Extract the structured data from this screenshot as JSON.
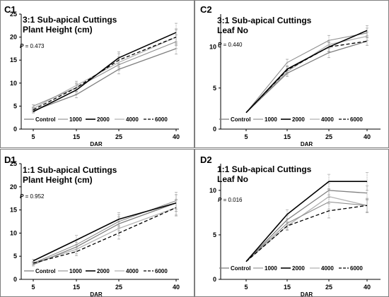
{
  "chart_data": [
    {
      "id": "C1",
      "type": "line",
      "title_lines": [
        "3:1 Sub-apical Cuttings",
        "Plant Height (cm)"
      ],
      "p_label": "P",
      "p_value": "= 0.473",
      "xlabel": "DAR",
      "categories": [
        "5",
        "15",
        "25",
        "40"
      ],
      "ylim": [
        0,
        25
      ],
      "yticks": [
        0,
        5,
        10,
        15,
        20,
        25
      ],
      "series": [
        {
          "name": "Control",
          "values": [
            4.0,
            7.5,
            13.0,
            17.5
          ],
          "err": [
            0.3,
            0.7,
            1.0,
            1.2
          ]
        },
        {
          "name": "1000",
          "values": [
            5.0,
            9.0,
            14.0,
            19.0
          ],
          "err": [
            0.3,
            0.8,
            1.2,
            1.5
          ]
        },
        {
          "name": "2000",
          "values": [
            3.8,
            8.5,
            15.5,
            21.0
          ],
          "err": [
            0.3,
            0.9,
            1.3,
            2.0
          ]
        },
        {
          "name": "4000",
          "values": [
            4.5,
            9.5,
            14.5,
            20.0
          ],
          "err": [
            0.3,
            0.9,
            1.2,
            1.8
          ]
        },
        {
          "name": "6000",
          "values": [
            4.2,
            9.0,
            15.0,
            20.0
          ],
          "err": [
            0.3,
            1.0,
            1.4,
            1.6
          ]
        }
      ]
    },
    {
      "id": "C2",
      "type": "line",
      "title_lines": [
        "3:1 Sub-apical Cuttings",
        "Leaf No"
      ],
      "p_label": "P",
      "p_value": "= 0.440",
      "xlabel": "DAR",
      "categories": [
        "5",
        "15",
        "25",
        "40"
      ],
      "ylim": [
        0,
        14
      ],
      "yticks": [
        0,
        5,
        10
      ],
      "series": [
        {
          "name": "Control",
          "values": [
            2,
            6.8,
            9.3,
            10.7
          ],
          "err": [
            0,
            0.4,
            0.6,
            0.5
          ]
        },
        {
          "name": "1000",
          "values": [
            2,
            8.1,
            10.8,
            11.7
          ],
          "err": [
            0,
            0.4,
            0.6,
            0.6
          ]
        },
        {
          "name": "2000",
          "values": [
            2,
            7.3,
            10.0,
            12.0
          ],
          "err": [
            0,
            0.4,
            0.6,
            0.6
          ]
        },
        {
          "name": "4000",
          "values": [
            2,
            7.0,
            10.3,
            11.3
          ],
          "err": [
            0,
            0.4,
            0.5,
            0.5
          ]
        },
        {
          "name": "6000",
          "values": [
            2,
            7.2,
            10.0,
            10.7
          ],
          "err": [
            0,
            0.4,
            0.5,
            0.5
          ]
        }
      ]
    },
    {
      "id": "D1",
      "type": "line",
      "title_lines": [
        "1:1 Sub-apical Cuttings",
        "Plant Height (cm)"
      ],
      "p_label": "P",
      "p_value": "= 0.952",
      "xlabel": "DAR",
      "categories": [
        "5",
        "15",
        "25",
        "40"
      ],
      "ylim": [
        0,
        25
      ],
      "yticks": [
        0,
        5,
        10,
        15,
        20,
        25
      ],
      "series": [
        {
          "name": "Control",
          "values": [
            3.2,
            7.0,
            12.0,
            16.5
          ],
          "err": [
            0.3,
            1.0,
            1.5,
            1.8
          ]
        },
        {
          "name": "1000",
          "values": [
            3.5,
            7.5,
            12.5,
            17.0
          ],
          "err": [
            0.3,
            1.0,
            1.5,
            1.8
          ]
        },
        {
          "name": "2000",
          "values": [
            4.0,
            8.5,
            13.0,
            16.5
          ],
          "err": [
            0.3,
            1.0,
            1.4,
            1.8
          ]
        },
        {
          "name": "4000",
          "values": [
            3.5,
            6.5,
            11.0,
            15.5
          ],
          "err": [
            0.3,
            1.0,
            1.5,
            1.8
          ]
        },
        {
          "name": "6000",
          "values": [
            3.5,
            6.0,
            10.0,
            15.5
          ],
          "err": [
            0.3,
            0.9,
            1.3,
            1.6
          ]
        }
      ]
    },
    {
      "id": "D2",
      "type": "line",
      "title_lines": [
        "1:1 Sub-apical Cuttings",
        "Leaf No"
      ],
      "p_label": "P",
      "p_value": "= 0.016",
      "xlabel": "DAR",
      "categories": [
        "5",
        "15",
        "25",
        "40"
      ],
      "ylim": [
        0,
        13
      ],
      "yticks": [
        0,
        5,
        10
      ],
      "series": [
        {
          "name": "Control",
          "values": [
            2,
            6.7,
            10.0,
            9.7
          ],
          "err": [
            0,
            0.5,
            0.8,
            0.8
          ]
        },
        {
          "name": "1000",
          "values": [
            2,
            6.3,
            8.7,
            8.3
          ],
          "err": [
            0,
            0.5,
            0.8,
            0.8
          ]
        },
        {
          "name": "2000",
          "values": [
            2,
            7.3,
            11.0,
            11.0
          ],
          "err": [
            0,
            0.5,
            0.8,
            1.0
          ]
        },
        {
          "name": "4000",
          "values": [
            2,
            6.0,
            9.3,
            8.3
          ],
          "err": [
            0,
            0.5,
            0.8,
            0.8
          ]
        },
        {
          "name": "6000",
          "values": [
            2,
            6.0,
            7.7,
            8.3
          ],
          "err": [
            0,
            0.4,
            0.8,
            0.7
          ]
        }
      ]
    }
  ],
  "series_styles": {
    "Control": {
      "color": "#7f7f7f",
      "width": 1.3,
      "dash": ""
    },
    "1000": {
      "color": "#8c8c8c",
      "width": 1.1,
      "dash": ""
    },
    "2000": {
      "color": "#000000",
      "width": 1.6,
      "dash": ""
    },
    "4000": {
      "color": "#b3b3b3",
      "width": 1.3,
      "dash": ""
    },
    "6000": {
      "color": "#000000",
      "width": 1.3,
      "dash": "5,3"
    }
  },
  "error_bar_color": "#a6a6a6",
  "axis_color": "#000000",
  "frame_color": "#7f7f7f"
}
